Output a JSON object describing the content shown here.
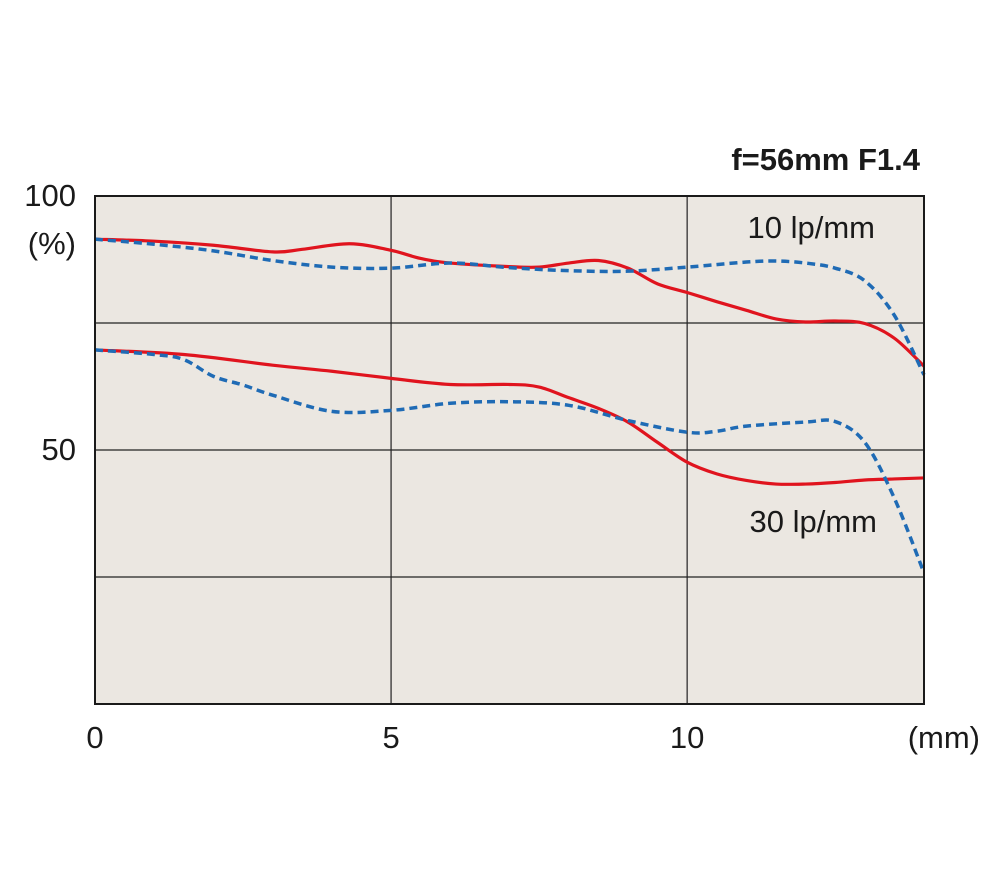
{
  "chart_data": {
    "type": "line",
    "title": "f=56mm F1.4",
    "xlabel": "(mm)",
    "ylabel": "(%)",
    "xlim": [
      0,
      14
    ],
    "ylim": [
      0,
      100
    ],
    "xticks": [
      0,
      5,
      10
    ],
    "xtick_labels": [
      "0",
      "5",
      "10"
    ],
    "yticks": [
      50,
      100
    ],
    "ytick_labels": [
      "50",
      "100"
    ],
    "grid_x": [
      5,
      10
    ],
    "grid_y": [
      25,
      50,
      75
    ],
    "grid": true,
    "annotations": [
      {
        "text": "10 lp/mm",
        "x": 12.4,
        "y": 93
      },
      {
        "text": "30 lp/mm",
        "x": 12.4,
        "y": 34.5
      }
    ],
    "colors": {
      "solid": "#e0141e",
      "dashed": "#1f6bb5",
      "plot_bg": "#ebe7e1",
      "grid": "#222222"
    },
    "series": [
      {
        "style": "solid",
        "color": "#e0141e",
        "x": [
          0,
          1,
          2,
          3,
          3.5,
          4.3,
          5,
          5.5,
          6,
          7,
          7.5,
          8,
          8.5,
          9,
          9.5,
          10,
          10.5,
          11,
          11.5,
          12,
          12.5,
          13,
          13.5,
          14
        ],
        "y": [
          91.5,
          91.1,
          90.3,
          89.0,
          89.5,
          90.6,
          89.3,
          87.7,
          86.8,
          86.1,
          86.0,
          86.8,
          87.3,
          85.8,
          82.7,
          81.0,
          79.2,
          77.5,
          75.8,
          75.2,
          75.4,
          74.9,
          72.0,
          66.5
        ]
      },
      {
        "style": "dashed",
        "color": "#1f6bb5",
        "x": [
          0,
          1,
          2,
          3,
          4,
          5,
          6,
          7,
          8,
          9,
          10,
          11,
          11.5,
          12,
          12.5,
          13,
          13.5,
          14
        ],
        "y": [
          91.5,
          90.5,
          89.2,
          87.3,
          86.0,
          85.8,
          86.8,
          85.9,
          85.3,
          85.2,
          86.0,
          87.0,
          87.2,
          86.8,
          85.8,
          83.3,
          76.5,
          64.8
        ]
      },
      {
        "style": "solid",
        "color": "#e0141e",
        "x": [
          0,
          1.5,
          3,
          4,
          5,
          6,
          7,
          7.5,
          8,
          8.5,
          9,
          9.5,
          10,
          10.5,
          11,
          11.5,
          12,
          12.5,
          13,
          13.5,
          14
        ],
        "y": [
          69.7,
          68.8,
          66.7,
          65.5,
          64.1,
          62.9,
          62.9,
          62.4,
          60.3,
          58.2,
          55.5,
          51.5,
          47.6,
          45.3,
          44.0,
          43.3,
          43.3,
          43.6,
          44.1,
          44.3,
          44.5
        ]
      },
      {
        "style": "dashed",
        "color": "#1f6bb5",
        "x": [
          0,
          1,
          1.5,
          2,
          2.5,
          3,
          4,
          5,
          6,
          7,
          8,
          9,
          10,
          10.5,
          11,
          12,
          12.5,
          13,
          13.5,
          14
        ],
        "y": [
          69.7,
          68.8,
          67.8,
          64.5,
          62.8,
          60.8,
          57.6,
          57.8,
          59.2,
          59.5,
          58.8,
          55.8,
          53.5,
          53.7,
          54.7,
          55.5,
          55.6,
          51.5,
          40.5,
          25.8
        ]
      }
    ]
  }
}
